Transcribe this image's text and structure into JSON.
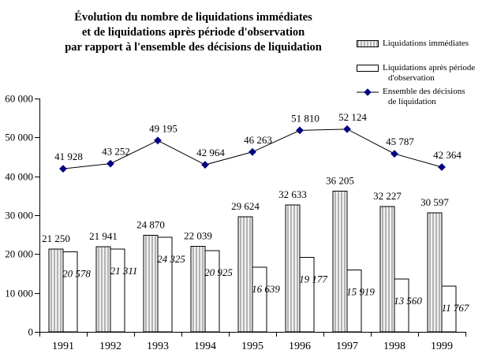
{
  "title": {
    "line1": "Évolution du nombre de liquidations immédiates",
    "line2": "et de liquidations après période d'observation",
    "line3": "par rapport à l'ensemble des décisions de liquidation"
  },
  "legend": {
    "items": [
      {
        "swatch": "hatched-bar",
        "lines": [
          "Liquidations immédiates"
        ]
      },
      {
        "swatch": "white-bar",
        "lines": [
          "Liquidations après période",
          "d'observation"
        ]
      },
      {
        "swatch": "line-diamond",
        "lines": [
          "Ensemble des décisions",
          "de liquidation"
        ]
      }
    ]
  },
  "chart_data": {
    "type": "bar",
    "subtype": "bar+line combo",
    "title": "Évolution du nombre de liquidations immédiates et de liquidations après période d'observation par rapport à l'ensemble des décisions de liquidation",
    "categories": [
      "1991",
      "1992",
      "1993",
      "1994",
      "1995",
      "1996",
      "1997",
      "1998",
      "1999"
    ],
    "series": [
      {
        "name": "Liquidations immédiates",
        "type": "bar",
        "style": "hatched",
        "values": [
          21250,
          21941,
          24870,
          22039,
          29624,
          32633,
          36205,
          32227,
          30597
        ]
      },
      {
        "name": "Liquidations après période d'observation",
        "type": "bar",
        "style": "white",
        "label_style": "italic",
        "values": [
          20578,
          21311,
          24325,
          20925,
          16639,
          19177,
          15919,
          13560,
          11767
        ]
      },
      {
        "name": "Ensemble des décisions de liquidation",
        "type": "line",
        "marker": "diamond",
        "values": [
          41928,
          43252,
          49195,
          42964,
          46263,
          51810,
          52124,
          45787,
          42364
        ]
      }
    ],
    "xlabel": "",
    "ylabel": "",
    "ylim": [
      0,
      60000
    ],
    "ytick_step": 10000,
    "ytick_labels": [
      "0",
      "10 000",
      "20 000",
      "30 000",
      "40 000",
      "50 000",
      "60 000"
    ],
    "grid": false,
    "legend_position": "top-right",
    "colors": {
      "marker": "#000080",
      "line": "#000000",
      "bar_border": "#000000",
      "hatch_dark": "#b3b3b3",
      "hatch_light": "#f2f2f2",
      "white_bar_fill": "#ffffff",
      "text": "#000000"
    }
  }
}
